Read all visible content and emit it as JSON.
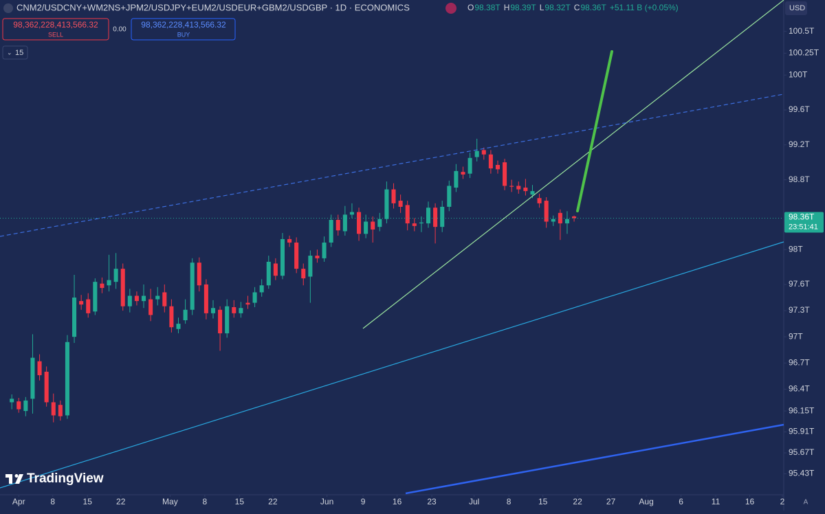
{
  "header": {
    "symbol": "CNM2/USDCNY+WM2NS+JPM2/USDJPY+EUM2/USDEUR+GBM2/USDGBP · 1D · ECONOMICS",
    "ohlc": [
      [
        "O",
        "98.38T"
      ],
      [
        "H",
        "98.39T"
      ],
      [
        "L",
        "98.32T"
      ],
      [
        "C",
        "98.36T"
      ]
    ],
    "change": "+51.11 B (+0.05%)",
    "sell_price": "98,362,228,413,566.32",
    "sell_label": "SELL",
    "spread": "0.00",
    "buy_price": "98,362,228,413,566.32",
    "buy_label": "BUY",
    "indicator_count": "15",
    "currency": "USD",
    "countdown": "23:51:41",
    "brand": "TradingView",
    "auto_scale": "A"
  },
  "chart_data": {
    "type": "candlestick",
    "open": [
      96.25,
      96.26,
      96.15,
      96.29,
      96.72,
      96.6,
      96.25,
      96.22,
      96.1,
      97.0,
      97.41,
      97.43,
      97.29,
      97.61,
      97.59,
      97.63,
      97.78,
      97.35,
      97.47,
      97.41,
      97.43,
      97.43,
      97.51,
      97.35,
      97.09,
      97.19,
      97.31,
      97.85,
      97.6,
      97.27,
      97.31,
      97.04,
      97.34,
      97.27,
      97.39,
      97.39,
      97.51,
      97.59,
      97.84,
      97.7,
      98.12,
      98.08,
      97.78,
      97.69,
      97.93,
      97.9,
      98.08,
      98.34,
      98.21,
      98.4,
      98.43,
      98.18,
      98.32,
      98.26,
      98.35,
      98.69,
      98.56,
      98.51,
      98.3,
      98.3,
      98.3,
      98.48,
      98.26,
      98.49,
      98.71,
      98.89,
      98.87,
      99.06,
      99.14,
      99.09,
      98.97,
      99.0,
      98.73,
      98.73,
      98.71,
      98.63,
      98.59,
      98.56,
      98.32,
      98.42,
      98.3,
      98.38
    ],
    "high": [
      96.34,
      96.3,
      96.31,
      97.03,
      96.8,
      96.66,
      96.35,
      96.27,
      97.02,
      97.71,
      97.48,
      97.5,
      97.67,
      97.68,
      97.94,
      97.96,
      97.84,
      97.55,
      97.52,
      97.6,
      97.55,
      97.57,
      97.6,
      97.43,
      97.22,
      97.43,
      97.9,
      97.91,
      97.66,
      97.42,
      97.35,
      97.43,
      97.42,
      97.4,
      97.47,
      97.57,
      97.66,
      97.93,
      97.9,
      98.19,
      98.16,
      98.14,
      97.84,
      97.99,
      98.0,
      98.15,
      98.4,
      98.4,
      98.5,
      98.53,
      98.48,
      98.4,
      98.38,
      98.42,
      98.78,
      98.76,
      98.63,
      98.56,
      98.36,
      98.38,
      98.55,
      98.53,
      98.56,
      98.79,
      98.98,
      98.95,
      99.11,
      99.27,
      99.17,
      99.14,
      99.02,
      99.04,
      98.8,
      98.78,
      98.81,
      98.74,
      98.64,
      98.6,
      98.39,
      98.46,
      98.44,
      98.39
    ],
    "low": [
      96.17,
      96.13,
      96.09,
      96.12,
      96.5,
      96.2,
      96.02,
      96.04,
      96.06,
      96.93,
      97.31,
      97.22,
      97.25,
      97.5,
      97.52,
      97.55,
      97.3,
      97.28,
      97.36,
      97.33,
      97.18,
      97.36,
      97.28,
      97.05,
      97.04,
      97.15,
      97.25,
      97.52,
      97.2,
      97.21,
      96.84,
      96.99,
      97.22,
      97.22,
      97.32,
      97.34,
      97.46,
      97.55,
      97.65,
      97.66,
      98.03,
      97.73,
      97.59,
      97.39,
      97.85,
      97.86,
      98.03,
      98.16,
      98.16,
      98.36,
      98.1,
      98.13,
      98.08,
      98.21,
      98.3,
      98.47,
      98.42,
      98.22,
      98.21,
      98.2,
      98.25,
      98.07,
      98.2,
      98.44,
      98.66,
      98.81,
      98.82,
      99.01,
      99.03,
      98.87,
      98.87,
      98.68,
      98.66,
      98.64,
      98.62,
      98.59,
      98.48,
      98.25,
      98.27,
      98.11,
      98.18,
      98.32
    ],
    "close": [
      96.29,
      96.17,
      96.27,
      96.76,
      96.56,
      96.25,
      96.1,
      96.09,
      96.94,
      97.45,
      97.37,
      97.27,
      97.63,
      97.56,
      97.65,
      97.78,
      97.35,
      97.47,
      97.41,
      97.47,
      97.25,
      97.47,
      97.35,
      97.11,
      97.15,
      97.31,
      97.85,
      97.59,
      97.27,
      97.33,
      97.04,
      97.35,
      97.27,
      97.33,
      97.37,
      97.51,
      97.59,
      97.86,
      97.7,
      98.12,
      98.08,
      97.78,
      97.67,
      97.93,
      97.9,
      98.08,
      98.34,
      98.22,
      98.4,
      98.43,
      98.18,
      98.32,
      98.23,
      98.35,
      98.69,
      98.53,
      98.49,
      98.3,
      98.27,
      98.31,
      98.48,
      98.26,
      98.49,
      98.73,
      98.9,
      98.86,
      99.05,
      99.13,
      99.09,
      98.93,
      98.92,
      98.73,
      98.72,
      98.69,
      98.67,
      98.67,
      98.53,
      98.32,
      98.35,
      98.3,
      98.35,
      98.36
    ],
    "up_color": "#22ab94",
    "down_color": "#f23645",
    "ylim": [
      95.19,
      100.86
    ],
    "yticks": [
      {
        "value": 100.5,
        "label": "100.5T"
      },
      {
        "value": 100.25,
        "label": "100.25T"
      },
      {
        "value": 100,
        "label": "100T"
      },
      {
        "value": 99.6,
        "label": "99.6T"
      },
      {
        "value": 99.2,
        "label": "99.2T"
      },
      {
        "value": 98.8,
        "label": "98.8T"
      },
      {
        "value": 98,
        "label": "98T"
      },
      {
        "value": 97.6,
        "label": "97.6T"
      },
      {
        "value": 97.3,
        "label": "97.3T"
      },
      {
        "value": 97,
        "label": "97T"
      },
      {
        "value": 96.7,
        "label": "96.7T"
      },
      {
        "value": 96.4,
        "label": "96.4T"
      },
      {
        "value": 96.15,
        "label": "96.15T"
      },
      {
        "value": 95.91,
        "label": "95.91T"
      },
      {
        "value": 95.67,
        "label": "95.67T"
      },
      {
        "value": 95.43,
        "label": "95.43T"
      }
    ],
    "xlim": [
      -1.7,
      111.2
    ],
    "xticks": [
      {
        "value": 1,
        "label": "Apr"
      },
      {
        "value": 5.9,
        "label": "8"
      },
      {
        "value": 10.9,
        "label": "15"
      },
      {
        "value": 15.7,
        "label": "22"
      },
      {
        "value": 22.8,
        "label": "May"
      },
      {
        "value": 27.8,
        "label": "8"
      },
      {
        "value": 32.8,
        "label": "15"
      },
      {
        "value": 37.6,
        "label": "22"
      },
      {
        "value": 45.4,
        "label": "Jun"
      },
      {
        "value": 50.6,
        "label": "9"
      },
      {
        "value": 55.5,
        "label": "16"
      },
      {
        "value": 60.5,
        "label": "23"
      },
      {
        "value": 66.6,
        "label": "Jul"
      },
      {
        "value": 71.6,
        "label": "8"
      },
      {
        "value": 76.5,
        "label": "15"
      },
      {
        "value": 81.5,
        "label": "22"
      },
      {
        "value": 86.3,
        "label": "27"
      },
      {
        "value": 91.4,
        "label": "Aug"
      },
      {
        "value": 96.4,
        "label": "6"
      },
      {
        "value": 101.4,
        "label": "11"
      },
      {
        "value": 106.3,
        "label": "16"
      },
      {
        "value": 111,
        "label": "2"
      }
    ],
    "last_price": {
      "value": 98.36,
      "label": "98.36T"
    }
  }
}
